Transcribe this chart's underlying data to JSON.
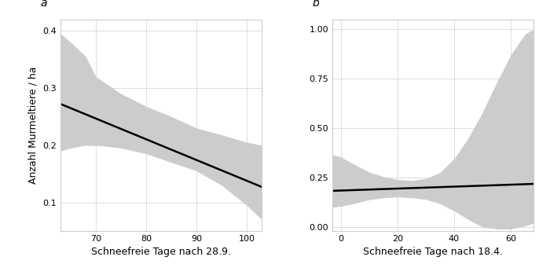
{
  "panel_a": {
    "label": "a",
    "xlabel": "Schneefreie Tage nach 28.9.",
    "ylabel": "Anzahl Murmeltiere / ha",
    "xlim": [
      63,
      103
    ],
    "ylim": [
      0.05,
      0.42
    ],
    "xticks": [
      70,
      80,
      90,
      100
    ],
    "yticks": [
      0.1,
      0.2,
      0.3,
      0.4
    ],
    "line_x": [
      63,
      103
    ],
    "line_y": [
      0.272,
      0.127
    ],
    "ci_x": [
      63,
      65,
      68,
      70,
      75,
      80,
      85,
      90,
      95,
      100,
      103
    ],
    "ci_upper": [
      0.395,
      0.38,
      0.355,
      0.32,
      0.29,
      0.268,
      0.25,
      0.23,
      0.218,
      0.205,
      0.2
    ],
    "ci_lower": [
      0.19,
      0.195,
      0.2,
      0.2,
      0.195,
      0.185,
      0.17,
      0.155,
      0.13,
      0.095,
      0.07
    ]
  },
  "panel_b": {
    "label": "b",
    "xlabel": "Schneefreie Tage nach 18.4.",
    "ylabel": "",
    "xlim": [
      -3,
      68
    ],
    "ylim": [
      -0.02,
      1.05
    ],
    "xticks": [
      0,
      20,
      40,
      60
    ],
    "yticks": [
      0.0,
      0.25,
      0.5,
      0.75,
      1.0
    ],
    "line_x": [
      -3,
      68
    ],
    "line_y": [
      0.183,
      0.218
    ],
    "ci_x": [
      -3,
      0,
      5,
      10,
      15,
      20,
      25,
      30,
      35,
      40,
      45,
      50,
      55,
      60,
      65,
      68
    ],
    "ci_upper": [
      0.365,
      0.355,
      0.315,
      0.278,
      0.255,
      0.24,
      0.235,
      0.245,
      0.275,
      0.345,
      0.45,
      0.58,
      0.73,
      0.87,
      0.975,
      1.0
    ],
    "ci_lower": [
      0.1,
      0.105,
      0.12,
      0.138,
      0.148,
      0.152,
      0.148,
      0.14,
      0.118,
      0.082,
      0.038,
      0.0,
      -0.01,
      -0.01,
      0.005,
      0.02
    ]
  },
  "bg_color": "#ffffff",
  "plot_bg_color": "#ffffff",
  "ci_color": "#cccccc",
  "line_color": "#000000",
  "grid_color": "#dddddd",
  "tick_label_size": 8,
  "axis_label_size": 9,
  "label_fontsize": 10
}
